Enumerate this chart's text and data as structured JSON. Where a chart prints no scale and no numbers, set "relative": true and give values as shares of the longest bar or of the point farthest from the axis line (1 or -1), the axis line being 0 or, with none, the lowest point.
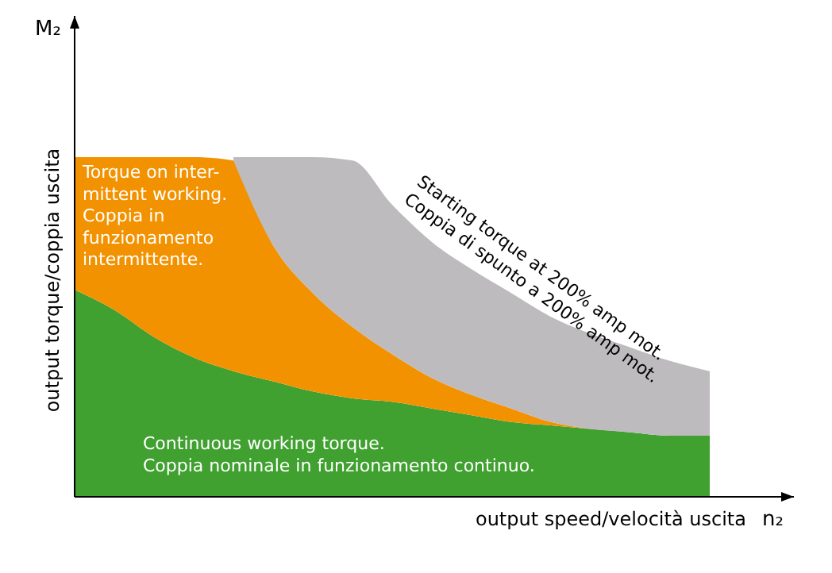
{
  "chart_data": {
    "type": "area",
    "stacked": true,
    "relative": true,
    "xlabel": "output speed/velocità uscita",
    "ylabel": "output torque/coppia uscita",
    "categories": [
      null,
      null,
      null,
      null,
      null,
      null,
      null,
      null,
      null,
      null,
      null,
      null,
      null,
      null,
      null,
      null,
      null
    ],
    "series": [
      {
        "color": "#40a030",
        "values": [
          0.61,
          0.55,
          0.47,
          0.41,
          0.37,
          0.34,
          0.31,
          0.29,
          0.28,
          0.26,
          0.24,
          0.22,
          0.21,
          0.2,
          0.19,
          0.18,
          0.18
        ]
      },
      {
        "color": "#f39200",
        "values": [
          0.39,
          0.45,
          0.53,
          0.59,
          0.62,
          0.4,
          0.29,
          0.21,
          0.14,
          0.09,
          0.06,
          0.04,
          0.01,
          0,
          null,
          null,
          null
        ]
      },
      {
        "color": "#bebbbe",
        "values": [
          null,
          null,
          null,
          null,
          0.01,
          0.26,
          0.4,
          0.49,
          0.44,
          0.4,
          0.37,
          0.34,
          0.31,
          0.28,
          0.25,
          0.22,
          0.19
        ]
      }
    ],
    "annotations": [
      "M₂",
      "n₂",
      "Torque on inter-\nmittent working.\nCoppia in\nfunzionamento\nintermittente.",
      "Starting torque at 200% amp mot.\nCoppia di spunto a 200% amp mot.",
      "Continuous working torque.\nCoppia nominale in funzionamento continuo."
    ]
  }
}
